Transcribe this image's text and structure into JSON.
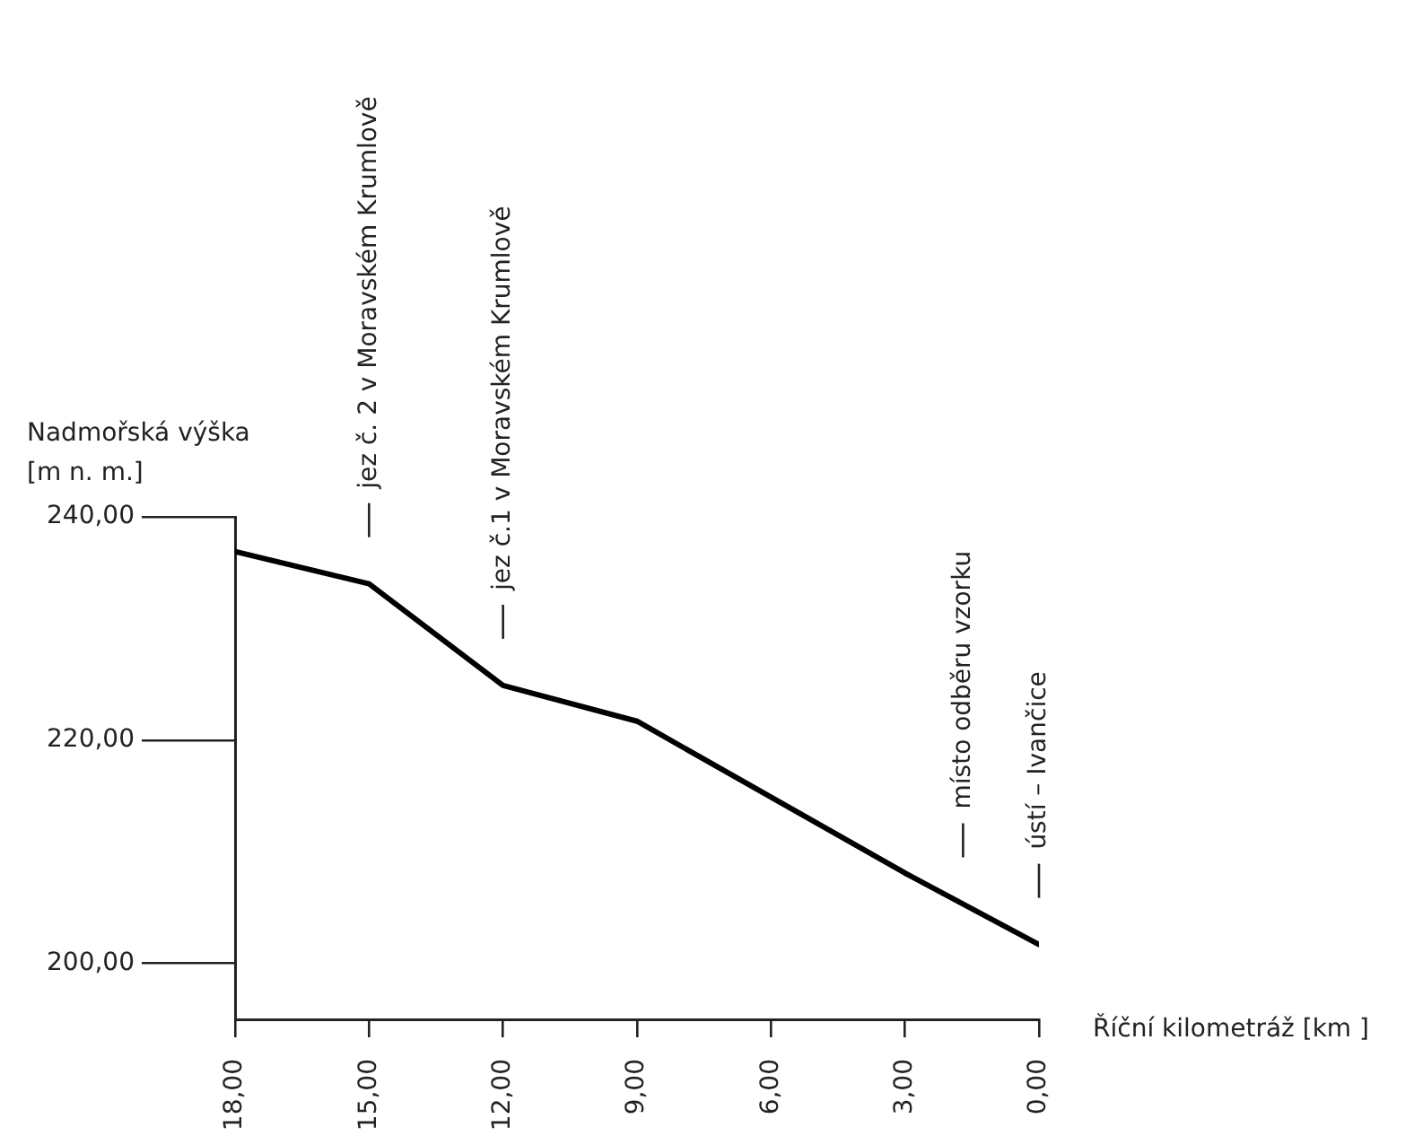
{
  "chart_data": {
    "type": "line",
    "xlabel": "Říční kilometráž [km ]",
    "ylabel": "Nadmořská výška [m n. m.]",
    "x": [
      18,
      15,
      12,
      9,
      3,
      0
    ],
    "series": [
      {
        "color": "#000000",
        "values": [
          236.9,
          234.0,
          224.9,
          221.7,
          208.1,
          201.7
        ]
      }
    ],
    "xlim": [
      18,
      0
    ],
    "ylim": [
      195,
      240
    ],
    "xticks": [
      {
        "value": 18,
        "label": "18,00"
      },
      {
        "value": 15,
        "label": "15,00"
      },
      {
        "value": 12,
        "label": "12,00"
      },
      {
        "value": 9,
        "label": "9,00"
      },
      {
        "value": 6,
        "label": "6,00"
      },
      {
        "value": 3,
        "label": "3,00"
      },
      {
        "value": 0,
        "label": "0,00"
      }
    ],
    "yticks": [
      {
        "value": 200,
        "label": "200,00"
      },
      {
        "value": 220,
        "label": "220,00"
      },
      {
        "value": 240,
        "label": "240,00"
      }
    ],
    "marker": "none",
    "line_style": "solid",
    "ref_lines": [
      {
        "axis": "x",
        "value": 15,
        "label": "jez č. 2 v Moravském Krumlově"
      },
      {
        "axis": "x",
        "value": 12,
        "label": "jez č.1 v Moravském Krumlově"
      },
      {
        "axis": "x",
        "value": 1.7,
        "label": "místo odběru vzorku"
      },
      {
        "axis": "x",
        "value": 0,
        "label": "ústí – Ivančice"
      }
    ]
  }
}
